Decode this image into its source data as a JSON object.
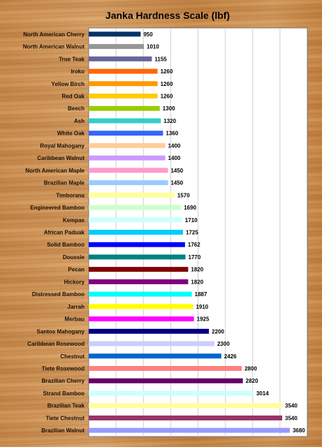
{
  "chart_data": {
    "type": "bar",
    "orientation": "horizontal",
    "title": "Janka Hardness Scale (lbf)",
    "xlim": [
      0,
      4000
    ],
    "grid": true,
    "legend": "none",
    "categories": [
      "North American Cherry",
      "North American Walnut",
      "True Teak",
      "Iroko",
      "Yellow Birch",
      "Red Oak",
      "Beech",
      "Ash",
      "White Oak",
      "Royal Mahogany",
      "Caribbean Walnut",
      "North American Maple",
      "Brazilian Maple",
      "Timborana",
      "Engineered Bamboo",
      "Kempas",
      "African Paduak",
      "Solid Bamboo",
      "Doussie",
      "Pecan",
      "Hickory",
      "Distressed Bamboo",
      "Jarrah",
      "Merbau",
      "Santos Mahogany",
      "Caribbean Rosewood",
      "Chestnut",
      "Tiete Rosewood",
      "Brazilian Cherry",
      "Strand Bamboo",
      "Brazilian Teak",
      "Tiete Chestnut",
      "Brazilian Walnut"
    ],
    "values": [
      950,
      1010,
      1155,
      1260,
      1260,
      1260,
      1300,
      1320,
      1360,
      1400,
      1400,
      1450,
      1450,
      1570,
      1690,
      1710,
      1725,
      1762,
      1770,
      1820,
      1820,
      1887,
      1910,
      1925,
      2200,
      2300,
      2426,
      2800,
      2820,
      3014,
      3540,
      3540,
      3680
    ],
    "colors": [
      "#003366",
      "#969696",
      "#666699",
      "#FF6600",
      "#FF9900",
      "#FFCC00",
      "#99CC00",
      "#33CCCC",
      "#3366FF",
      "#FFCC99",
      "#CC99FF",
      "#FF99CC",
      "#99CCFF",
      "#FFFF99",
      "#CCFFCC",
      "#CCFFFF",
      "#00CCFF",
      "#0000FF",
      "#008080",
      "#800000",
      "#800080",
      "#00FFFF",
      "#FFFF00",
      "#FF00FF",
      "#000080",
      "#CCCCFF",
      "#0066CC",
      "#FF8080",
      "#660066",
      "#CCFFFF",
      "#FFFF99",
      "#993366",
      "#9999FF"
    ]
  }
}
